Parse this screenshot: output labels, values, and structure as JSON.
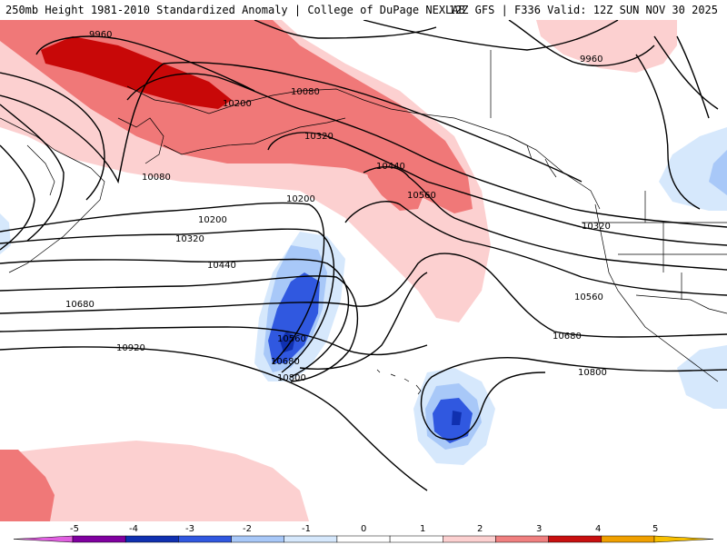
{
  "header": {
    "left_title": "250mb Height 1981-2010 Standardized Anomaly | College of DuPage NEXLAB",
    "right_title": "12Z GFS | F336 Valid: 12Z SUN NOV 30 2025"
  },
  "contour_labels": [
    {
      "id": "c1",
      "text": "9960"
    },
    {
      "id": "c2",
      "text": "10080"
    },
    {
      "id": "c3",
      "text": "10200"
    },
    {
      "id": "c4",
      "text": "10080"
    },
    {
      "id": "c5",
      "text": "10320"
    },
    {
      "id": "c6",
      "text": "10440"
    },
    {
      "id": "c7",
      "text": "10560"
    },
    {
      "id": "c8",
      "text": "10200"
    },
    {
      "id": "c9",
      "text": "10200"
    },
    {
      "id": "c10",
      "text": "10320"
    },
    {
      "id": "c11",
      "text": "10440"
    },
    {
      "id": "c12",
      "text": "10680"
    },
    {
      "id": "c13",
      "text": "10560"
    },
    {
      "id": "c14",
      "text": "10680"
    },
    {
      "id": "c15",
      "text": "10800"
    },
    {
      "id": "c16",
      "text": "10920"
    },
    {
      "id": "c17",
      "text": "9960"
    },
    {
      "id": "c18",
      "text": "10320"
    },
    {
      "id": "c19",
      "text": "10560"
    },
    {
      "id": "c20",
      "text": "10680"
    },
    {
      "id": "c21",
      "text": "10800"
    }
  ],
  "colorbar": {
    "ticks": [
      "-5",
      "-4",
      "-3",
      "-2",
      "-1",
      "0",
      "1",
      "2",
      "3",
      "4",
      "5"
    ],
    "colors": [
      "#8000a0",
      "#1030b0",
      "#3058e0",
      "#a8c8f8",
      "#d6e8fc",
      "#ffffff",
      "#ffffff",
      "#fcd0d0",
      "#f08080",
      "#c81010",
      "#f0a000"
    ],
    "left_end_color": "#e060e0",
    "right_end_color": "#f8c000"
  },
  "anomaly_colors": {
    "pos1": "#fcd0d0",
    "pos2": "#f07878",
    "pos3": "#c80808",
    "neg1": "#d6e8fc",
    "neg2": "#a8c8f8",
    "neg3": "#3058e0",
    "neg4": "#1030b0"
  }
}
